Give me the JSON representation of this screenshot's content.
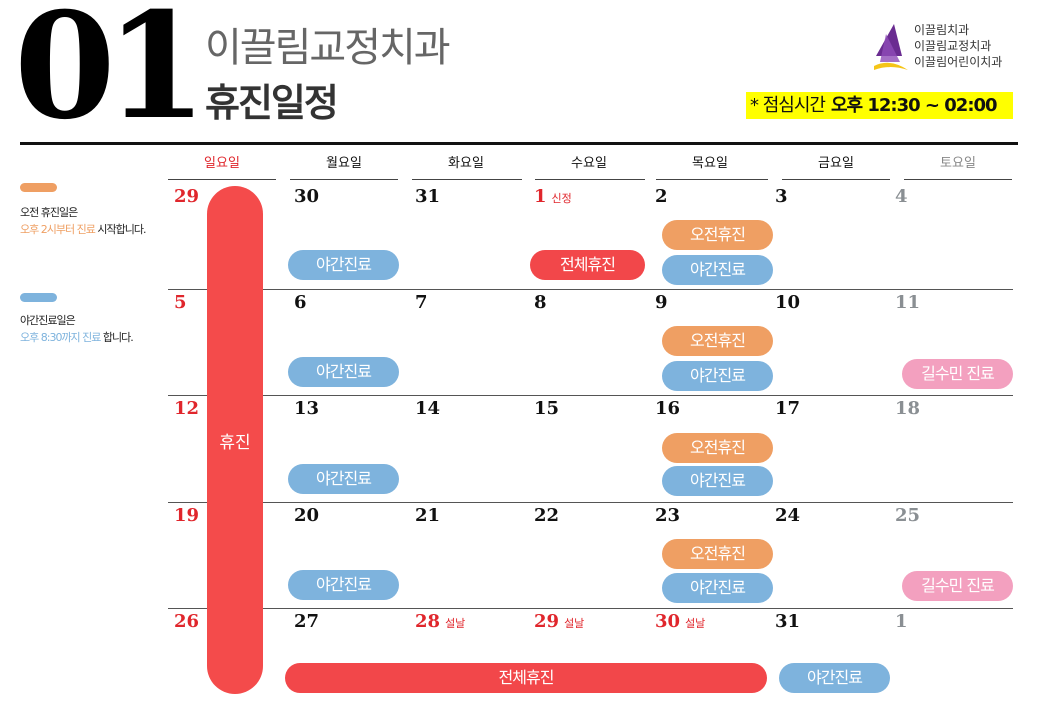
{
  "header": {
    "month": "01",
    "clinic_name": "이끌림교정치과",
    "schedule_title": "휴진일정",
    "lunch_label": "* 점심시간",
    "lunch_time": "오후 12:30 ~ 02:00"
  },
  "logo": {
    "lines": [
      "이끌림치과",
      "이끌림교정치과",
      "이끌림어린이치과"
    ],
    "colors": [
      "#6a2c91",
      "#f5c518"
    ]
  },
  "legend": [
    {
      "color": "#ef9f63",
      "line1": "오전 휴진일은",
      "highlight": "오후 2시부터 진료",
      "rest": " 시작합니다."
    },
    {
      "color": "#7eb3dd",
      "line1": "야간진료일은",
      "highlight": "오후 8:30까지 진료",
      "rest": " 합니다."
    }
  ],
  "weekdays": [
    "일요일",
    "월요일",
    "화요일",
    "수요일",
    "목요일",
    "금요일",
    "토요일"
  ],
  "weeks": [
    [
      "29",
      "30",
      "31",
      "1",
      "2",
      "3",
      "4"
    ],
    [
      "5",
      "6",
      "7",
      "8",
      "9",
      "10",
      "11"
    ],
    [
      "12",
      "13",
      "14",
      "15",
      "16",
      "17",
      "18"
    ],
    [
      "19",
      "20",
      "21",
      "22",
      "23",
      "24",
      "25"
    ],
    [
      "26",
      "27",
      "28",
      "29",
      "30",
      "31",
      "1"
    ]
  ],
  "day_notes": {
    "jan1": "신정",
    "seollal": "설날"
  },
  "event_labels": {
    "night": "야간진료",
    "morning_off": "오전휴진",
    "all_day_off": "전체휴진",
    "sunday_off": "휴진",
    "gil_sumin": "길수민 진료"
  },
  "colors": {
    "sunday_red": "#e0262c",
    "saturday_gray": "#8a8f93",
    "night_blue": "#7eb3dd",
    "morning_orange": "#ef9f63",
    "closed_red": "#f2474a",
    "pink": "#f3a0bf",
    "lunch_yellow": "#ffff00"
  }
}
